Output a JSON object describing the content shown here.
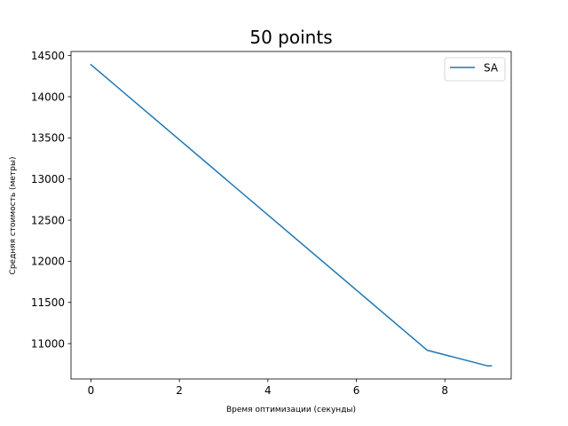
{
  "chart_data": {
    "type": "line",
    "title": "50 points",
    "xlabel": "Время оптимизации (секунды)",
    "ylabel": "Средняя стоимость (метры)",
    "xlim": [
      -0.45,
      9.5
    ],
    "ylim": [
      10570,
      14550
    ],
    "xticks": [
      0,
      2,
      4,
      6,
      8
    ],
    "yticks": [
      11000,
      11500,
      12000,
      12500,
      13000,
      13500,
      14000,
      14500
    ],
    "legend_position": "top-right",
    "grid": false,
    "series": [
      {
        "name": "SA",
        "color": "#1f77b4",
        "x": [
          0,
          7.6,
          8.96,
          9.05
        ],
        "y": [
          14390,
          10920,
          10730,
          10730
        ]
      }
    ]
  }
}
